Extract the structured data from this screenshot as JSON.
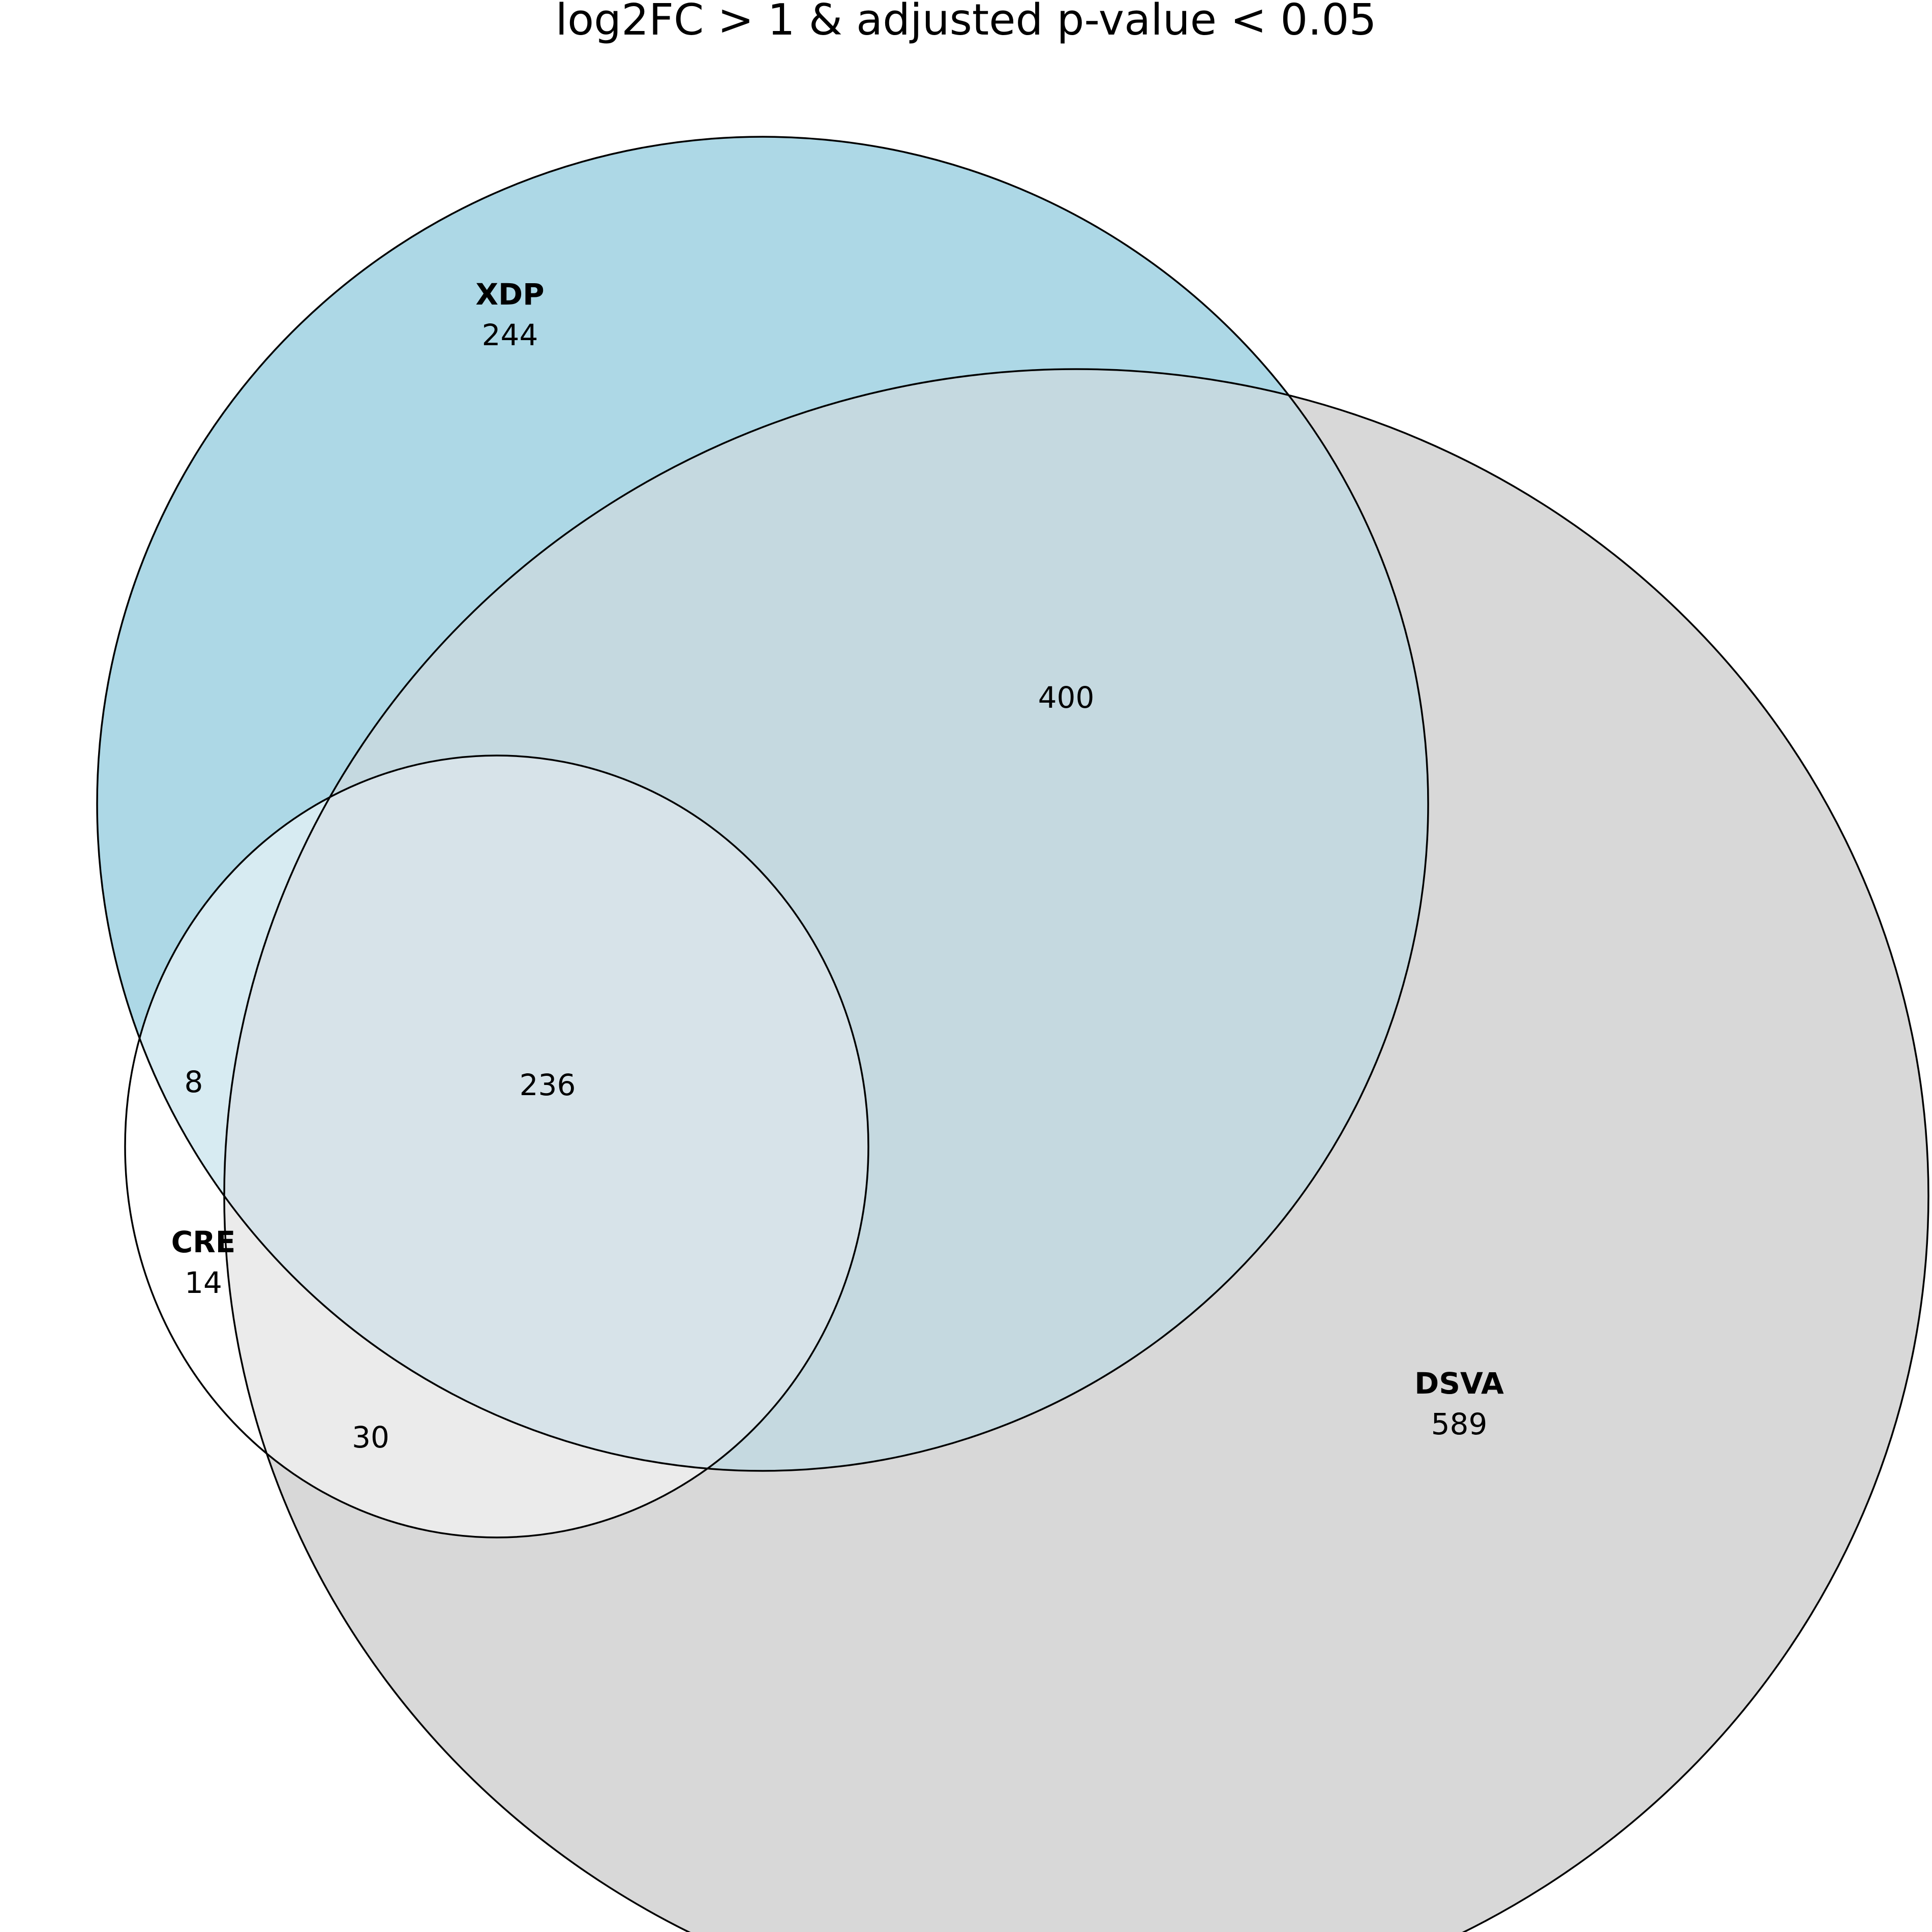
{
  "title": "log2FC > 1 & adjusted p-value < 0.05",
  "colors": {
    "xdp": "#add8e6",
    "dsva": "#d8d8d8",
    "xdp_dsva": "#c5d9e0",
    "cre": "#ffffff",
    "cre_xdp": "#d7ebf2",
    "cre_dsva": "#ebebeb",
    "cre_xdp_dsva": "#d7e3e9",
    "outline": "#000000"
  },
  "sets": {
    "xdp": {
      "label": "XDP",
      "count": "244"
    },
    "dsva": {
      "label": "DSVA",
      "count": "589"
    },
    "cre": {
      "label": "CRE",
      "count": "14"
    }
  },
  "overlaps": {
    "xdp_dsva": "400",
    "cre_xdp_dsva": "236",
    "cre_xdp": "8",
    "cre_dsva": "30"
  }
}
